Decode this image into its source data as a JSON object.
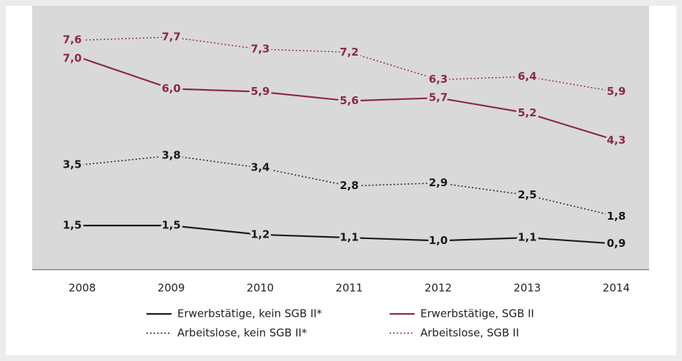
{
  "chart_data": {
    "type": "line",
    "categories": [
      "2008",
      "2009",
      "2010",
      "2011",
      "2012",
      "2013",
      "2014"
    ],
    "series": [
      {
        "name": "Erwerbstätige, kein SGB II*",
        "color": "#1a1a1a",
        "style": "solid",
        "values": [
          1.5,
          1.5,
          1.2,
          1.1,
          1.0,
          1.1,
          0.9
        ],
        "value_labels": [
          "1,5",
          "1,5",
          "1,2",
          "1,1",
          "1,0",
          "1,1",
          "0,9"
        ]
      },
      {
        "name": "Erwerbstätige, SGB II",
        "color": "#8b2942",
        "style": "solid",
        "values": [
          7.0,
          6.0,
          5.9,
          5.6,
          5.7,
          5.2,
          4.3
        ],
        "value_labels": [
          "7,0",
          "6,0",
          "5,9",
          "5,6",
          "5,7",
          "5,2",
          "4,3"
        ]
      },
      {
        "name": "Arbeitslose, kein SGB II*",
        "color": "#1a1a1a",
        "style": "dotted",
        "values": [
          3.5,
          3.8,
          3.4,
          2.8,
          2.9,
          2.5,
          1.8
        ],
        "value_labels": [
          "3,5",
          "3,8",
          "3,4",
          "2,8",
          "2,9",
          "2,5",
          "1,8"
        ]
      },
      {
        "name": "Arbeitslose, SGB II",
        "color": "#8b2942",
        "style": "dotted",
        "values": [
          7.6,
          7.7,
          7.3,
          7.2,
          6.3,
          6.4,
          5.9
        ],
        "value_labels": [
          "7,6",
          "7,7",
          "7,3",
          "7,2",
          "6,3",
          "6,4",
          "5,9"
        ]
      }
    ]
  }
}
